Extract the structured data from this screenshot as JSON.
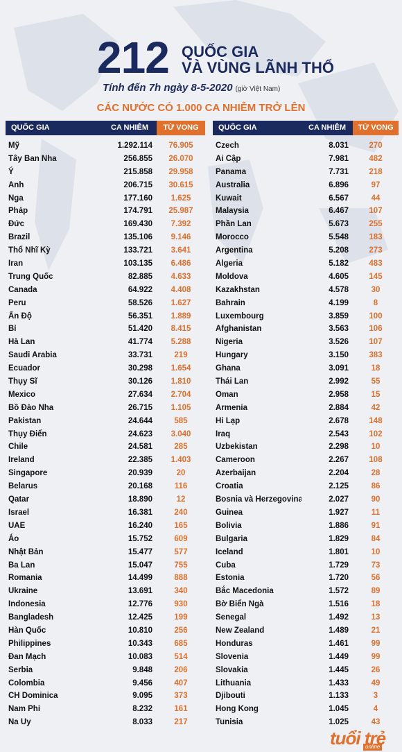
{
  "header": {
    "big_number": "212",
    "title_line1": "QUỐC GIA",
    "title_line2": "VÀ VÙNG LÃNH THỔ",
    "subtitle": "Tính đến 7h ngày 8-5-2020",
    "subtitle_note": "(giờ Việt Nam)"
  },
  "section_title": "CÁC NƯỚC CÓ 1.000 CA NHIỄM TRỞ LÊN",
  "columns": {
    "country": "QUỐC GIA",
    "cases": "CA NHIỄM",
    "deaths": "TỬ VONG"
  },
  "left_rows": [
    {
      "country": "Mỹ",
      "cases": "1.292.114",
      "deaths": "76.905"
    },
    {
      "country": "Tây Ban Nha",
      "cases": "256.855",
      "deaths": "26.070"
    },
    {
      "country": "Ý",
      "cases": "215.858",
      "deaths": "29.958"
    },
    {
      "country": "Anh",
      "cases": "206.715",
      "deaths": "30.615"
    },
    {
      "country": "Nga",
      "cases": "177.160",
      "deaths": "1.625"
    },
    {
      "country": "Pháp",
      "cases": "174.791",
      "deaths": "25.987"
    },
    {
      "country": "Đức",
      "cases": "169.430",
      "deaths": "7.392"
    },
    {
      "country": "Brazil",
      "cases": "135.106",
      "deaths": "9.146"
    },
    {
      "country": "Thổ Nhĩ Kỳ",
      "cases": "133.721",
      "deaths": "3.641"
    },
    {
      "country": "Iran",
      "cases": "103.135",
      "deaths": "6.486"
    },
    {
      "country": "Trung Quốc",
      "cases": "82.885",
      "deaths": "4.633"
    },
    {
      "country": "Canada",
      "cases": "64.922",
      "deaths": "4.408"
    },
    {
      "country": "Peru",
      "cases": "58.526",
      "deaths": "1.627"
    },
    {
      "country": "Ấn Độ",
      "cases": "56.351",
      "deaths": "1.889"
    },
    {
      "country": "Bỉ",
      "cases": "51.420",
      "deaths": "8.415"
    },
    {
      "country": "Hà Lan",
      "cases": "41.774",
      "deaths": "5.288"
    },
    {
      "country": "Saudi Arabia",
      "cases": "33.731",
      "deaths": "219"
    },
    {
      "country": "Ecuador",
      "cases": "30.298",
      "deaths": "1.654"
    },
    {
      "country": "Thụy Sĩ",
      "cases": "30.126",
      "deaths": "1.810"
    },
    {
      "country": "Mexico",
      "cases": "27.634",
      "deaths": "2.704"
    },
    {
      "country": "Bồ Đào Nha",
      "cases": "26.715",
      "deaths": "1.105"
    },
    {
      "country": "Pakistan",
      "cases": "24.644",
      "deaths": "585"
    },
    {
      "country": "Thụy Điển",
      "cases": "24.623",
      "deaths": "3.040"
    },
    {
      "country": "Chile",
      "cases": "24.581",
      "deaths": "285"
    },
    {
      "country": "Ireland",
      "cases": "22.385",
      "deaths": "1.403"
    },
    {
      "country": "Singapore",
      "cases": "20.939",
      "deaths": "20"
    },
    {
      "country": "Belarus",
      "cases": "20.168",
      "deaths": "116"
    },
    {
      "country": "Qatar",
      "cases": "18.890",
      "deaths": "12"
    },
    {
      "country": "Israel",
      "cases": "16.381",
      "deaths": "240"
    },
    {
      "country": "UAE",
      "cases": "16.240",
      "deaths": "165"
    },
    {
      "country": "Áo",
      "cases": "15.752",
      "deaths": "609"
    },
    {
      "country": "Nhật Bản",
      "cases": "15.477",
      "deaths": "577"
    },
    {
      "country": "Ba Lan",
      "cases": "15.047",
      "deaths": "755"
    },
    {
      "country": "Romania",
      "cases": "14.499",
      "deaths": "888"
    },
    {
      "country": "Ukraine",
      "cases": "13.691",
      "deaths": "340"
    },
    {
      "country": "Indonesia",
      "cases": "12.776",
      "deaths": "930"
    },
    {
      "country": "Bangladesh",
      "cases": "12.425",
      "deaths": "199"
    },
    {
      "country": "Hàn Quốc",
      "cases": "10.810",
      "deaths": "256"
    },
    {
      "country": "Philippines",
      "cases": "10.343",
      "deaths": "685"
    },
    {
      "country": "Đan Mạch",
      "cases": "10.083",
      "deaths": "514"
    },
    {
      "country": "Serbia",
      "cases": "9.848",
      "deaths": "206"
    },
    {
      "country": "Colombia",
      "cases": "9.456",
      "deaths": "407"
    },
    {
      "country": "CH Dominica",
      "cases": "9.095",
      "deaths": "373"
    },
    {
      "country": "Nam Phi",
      "cases": "8.232",
      "deaths": "161"
    },
    {
      "country": "Na Uy",
      "cases": "8.033",
      "deaths": "217"
    }
  ],
  "right_rows": [
    {
      "country": "Czech",
      "cases": "8.031",
      "deaths": "270"
    },
    {
      "country": "Ai Cập",
      "cases": "7.981",
      "deaths": "482"
    },
    {
      "country": "Panama",
      "cases": "7.731",
      "deaths": "218"
    },
    {
      "country": "Australia",
      "cases": "6.896",
      "deaths": "97"
    },
    {
      "country": "Kuwait",
      "cases": "6.567",
      "deaths": "44"
    },
    {
      "country": "Malaysia",
      "cases": "6.467",
      "deaths": "107"
    },
    {
      "country": "Phần Lan",
      "cases": "5.673",
      "deaths": "255"
    },
    {
      "country": "Morocco",
      "cases": "5.548",
      "deaths": "183"
    },
    {
      "country": "Argentina",
      "cases": "5.208",
      "deaths": "273"
    },
    {
      "country": "Algeria",
      "cases": "5.182",
      "deaths": "483"
    },
    {
      "country": "Moldova",
      "cases": "4.605",
      "deaths": "145"
    },
    {
      "country": "Kazakhstan",
      "cases": "4.578",
      "deaths": "30"
    },
    {
      "country": "Bahrain",
      "cases": "4.199",
      "deaths": "8"
    },
    {
      "country": "Luxembourg",
      "cases": "3.859",
      "deaths": "100"
    },
    {
      "country": "Afghanistan",
      "cases": "3.563",
      "deaths": "106"
    },
    {
      "country": "Nigeria",
      "cases": "3.526",
      "deaths": "107"
    },
    {
      "country": "Hungary",
      "cases": "3.150",
      "deaths": "383"
    },
    {
      "country": "Ghana",
      "cases": "3.091",
      "deaths": "18"
    },
    {
      "country": "Thái Lan",
      "cases": "2.992",
      "deaths": "55"
    },
    {
      "country": "Oman",
      "cases": "2.958",
      "deaths": "15"
    },
    {
      "country": "Armenia",
      "cases": "2.884",
      "deaths": "42"
    },
    {
      "country": "Hi Lạp",
      "cases": "2.678",
      "deaths": "148"
    },
    {
      "country": "Iraq",
      "cases": "2.543",
      "deaths": "102"
    },
    {
      "country": "Uzbekistan",
      "cases": "2.298",
      "deaths": "10"
    },
    {
      "country": "Cameroon",
      "cases": "2.267",
      "deaths": "108"
    },
    {
      "country": "Azerbaijan",
      "cases": "2.204",
      "deaths": "28"
    },
    {
      "country": "Croatia",
      "cases": "2.125",
      "deaths": "86"
    },
    {
      "country": "Bosnia và Herzegovina",
      "cases": "2.027",
      "deaths": "90"
    },
    {
      "country": "Guinea",
      "cases": "1.927",
      "deaths": "11"
    },
    {
      "country": "Bolivia",
      "cases": "1.886",
      "deaths": "91"
    },
    {
      "country": "Bulgaria",
      "cases": "1.829",
      "deaths": "84"
    },
    {
      "country": "Iceland",
      "cases": "1.801",
      "deaths": "10"
    },
    {
      "country": "Cuba",
      "cases": "1.729",
      "deaths": "73"
    },
    {
      "country": "Estonia",
      "cases": "1.720",
      "deaths": "56"
    },
    {
      "country": "Bắc Macedonia",
      "cases": "1.572",
      "deaths": "89"
    },
    {
      "country": "Bờ Biển Ngà",
      "cases": "1.516",
      "deaths": "18"
    },
    {
      "country": "Senegal",
      "cases": "1.492",
      "deaths": "13"
    },
    {
      "country": "New Zealand",
      "cases": "1.489",
      "deaths": "21"
    },
    {
      "country": "Honduras",
      "cases": "1.461",
      "deaths": "99"
    },
    {
      "country": "Slovenia",
      "cases": "1.449",
      "deaths": "99"
    },
    {
      "country": "Slovakia",
      "cases": "1.445",
      "deaths": "26"
    },
    {
      "country": "Lithuania",
      "cases": "1.433",
      "deaths": "49"
    },
    {
      "country": "Djibouti",
      "cases": "1.133",
      "deaths": "3"
    },
    {
      "country": "Hong Kong",
      "cases": "1.045",
      "deaths": "4"
    },
    {
      "country": "Tunisia",
      "cases": "1.025",
      "deaths": "43"
    }
  ],
  "logo": {
    "main": "tuổi trẻ",
    "sub": "online"
  },
  "colors": {
    "navy": "#1b2a5e",
    "orange": "#e0702b",
    "background": "#eef0f4"
  }
}
